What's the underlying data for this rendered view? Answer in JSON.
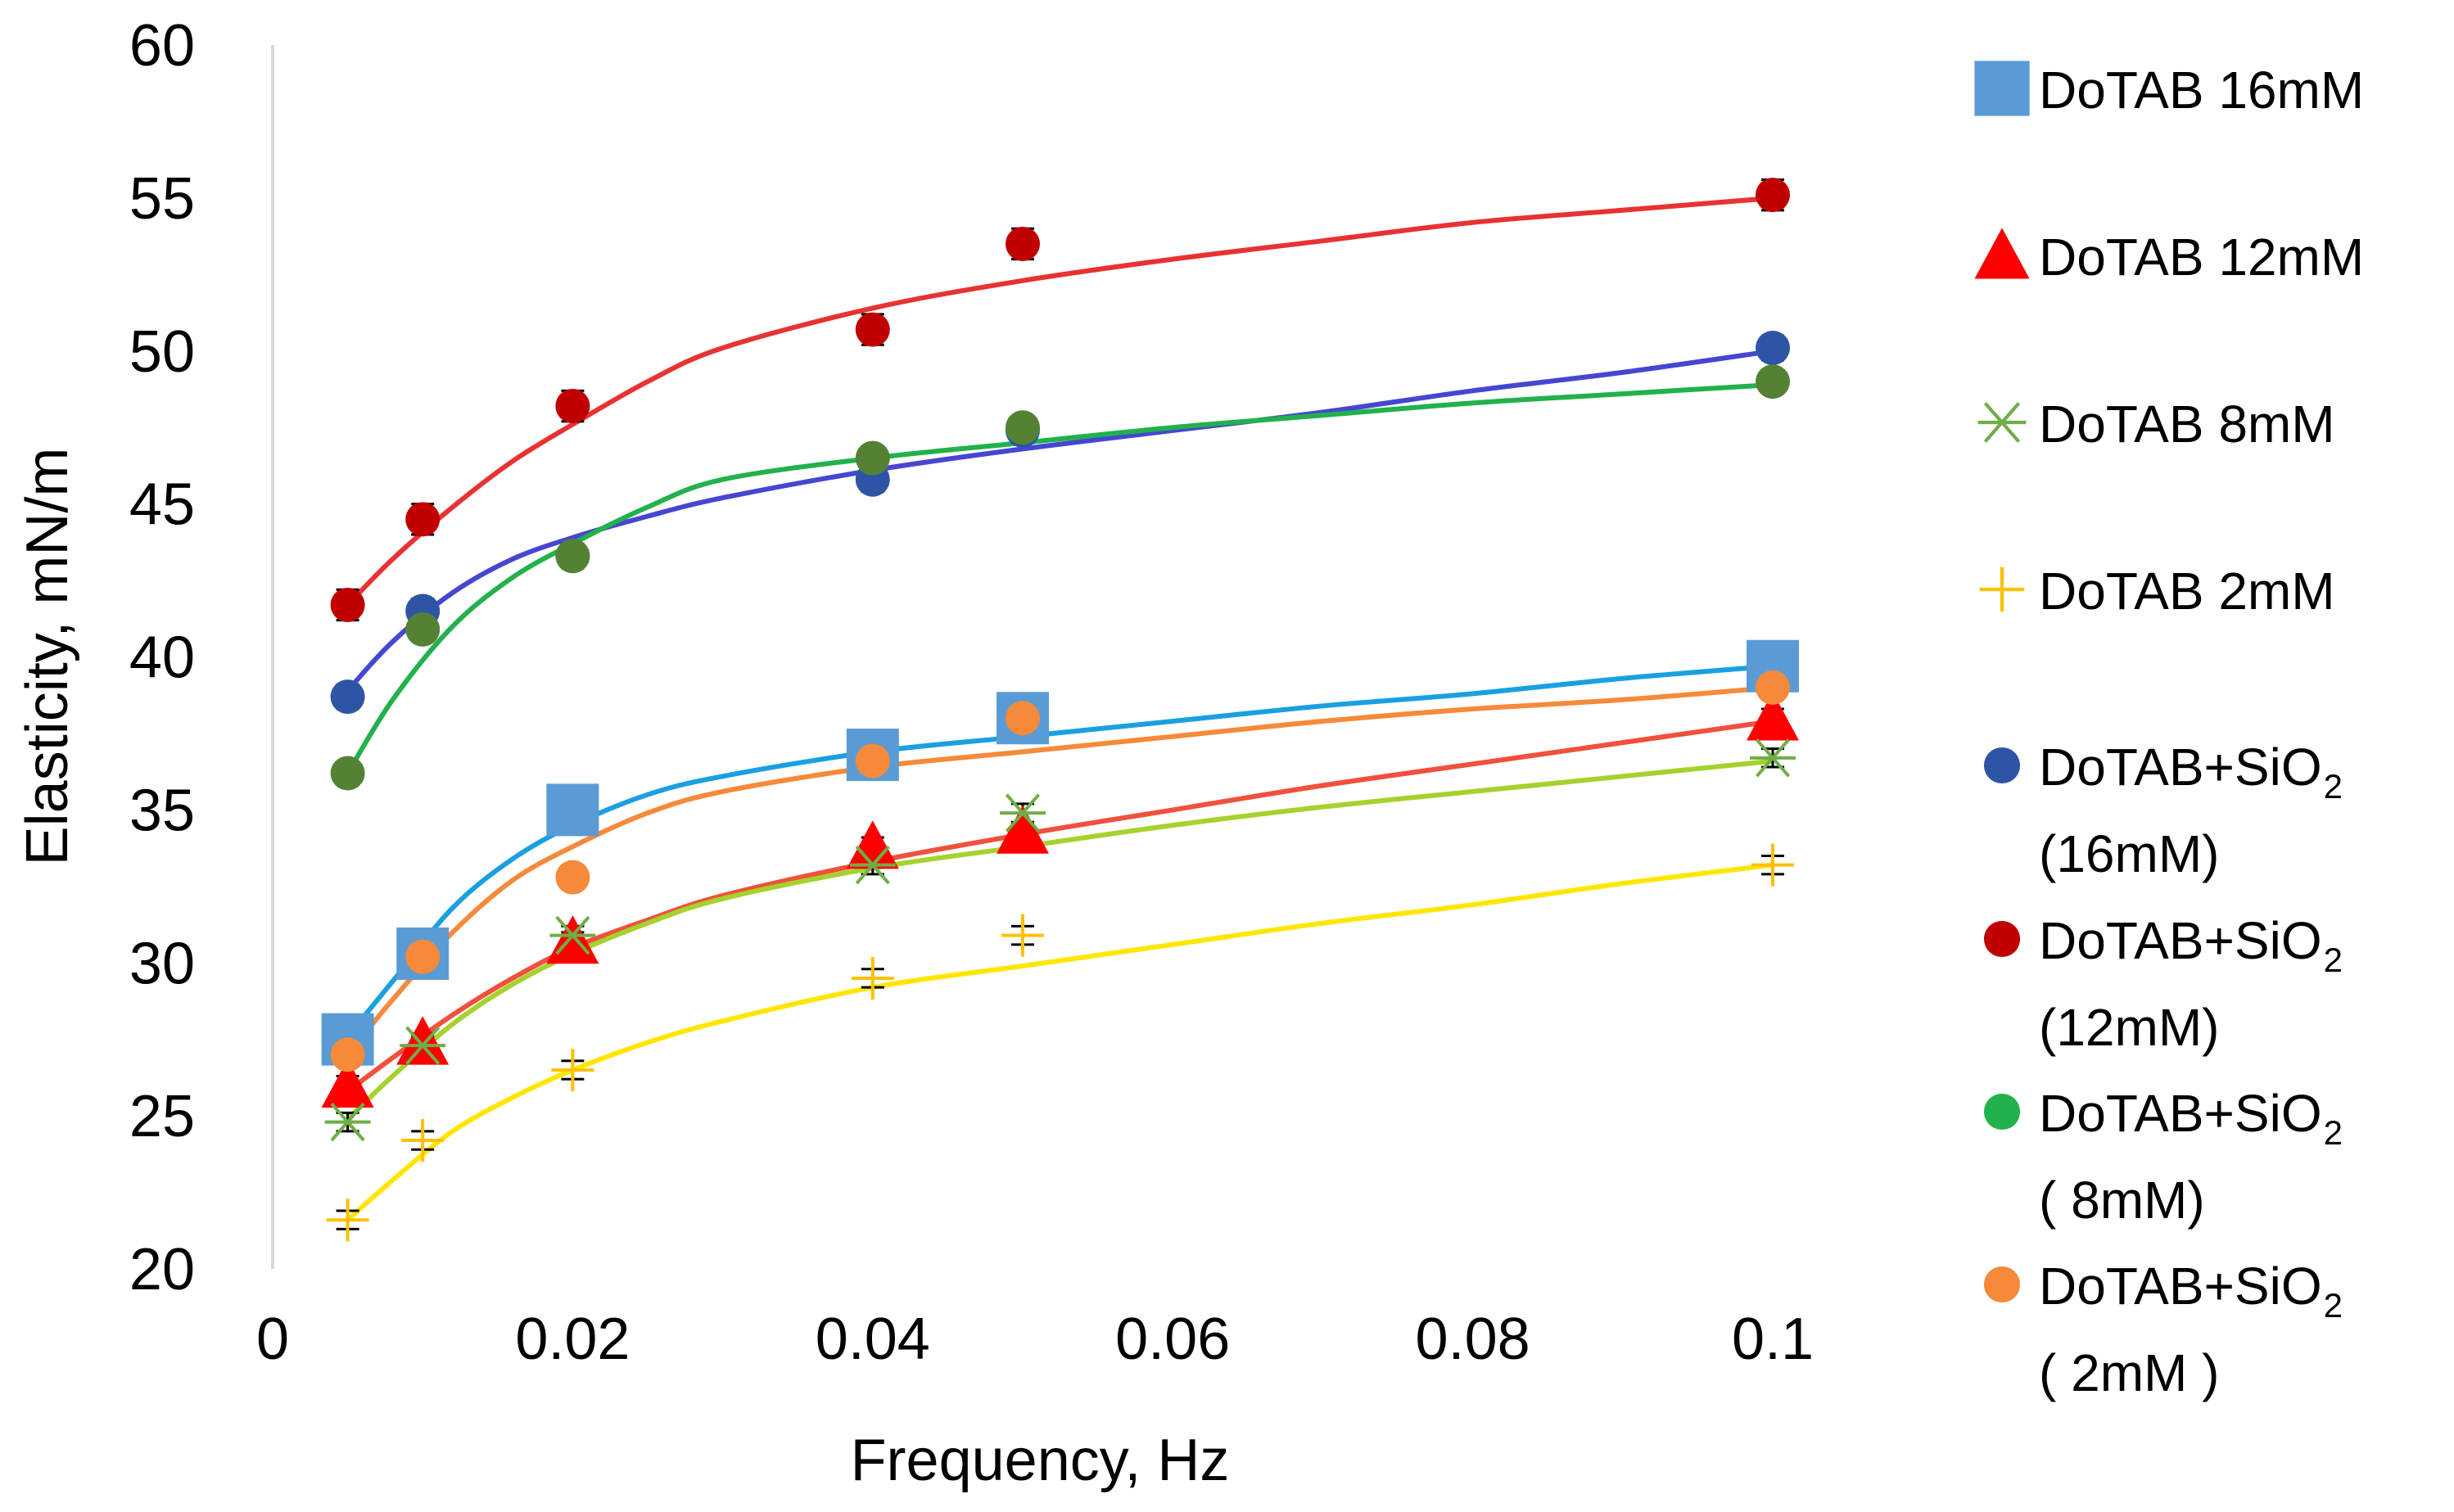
{
  "chart_data": {
    "type": "scatter",
    "title": "",
    "xlabel": "Frequency, Hz",
    "ylabel": "Elasticity, mN/m",
    "xlim": [
      0,
      0.1
    ],
    "ylim": [
      20,
      60
    ],
    "xticks": [
      0,
      0.02,
      0.04,
      0.06,
      0.08,
      0.1
    ],
    "xtick_labels": [
      "0",
      "0.02",
      "0.04",
      "0.06",
      "0.08",
      "0.1"
    ],
    "yticks": [
      20,
      25,
      30,
      35,
      40,
      45,
      50,
      55,
      60
    ],
    "ytick_labels": [
      "20",
      "25",
      "30",
      "35",
      "40",
      "45",
      "50",
      "55",
      "60"
    ],
    "grid": false,
    "legend_position": "right",
    "series": [
      {
        "name": "DoTAB 16mM",
        "legend_lines": [
          "DoTAB 16mM"
        ],
        "marker": "square",
        "color": "#5B9BD5",
        "line_color": "#1AA0E0",
        "x": [
          0.005,
          0.01,
          0.02,
          0.04,
          0.05,
          0.1
        ],
        "y": [
          27.5,
          30.3,
          35.0,
          36.8,
          38.0,
          39.7
        ],
        "error": [
          0.3,
          0.3,
          0.3,
          0.3,
          0.3,
          0.3
        ],
        "fit": [
          [
            0.005,
            27.6
          ],
          [
            0.008,
            29.4
          ],
          [
            0.012,
            31.8
          ],
          [
            0.016,
            33.4
          ],
          [
            0.02,
            34.5
          ],
          [
            0.025,
            35.5
          ],
          [
            0.03,
            36.1
          ],
          [
            0.04,
            36.9
          ],
          [
            0.05,
            37.4
          ],
          [
            0.06,
            37.9
          ],
          [
            0.07,
            38.4
          ],
          [
            0.08,
            38.8
          ],
          [
            0.09,
            39.3
          ],
          [
            0.1,
            39.7
          ]
        ]
      },
      {
        "name": "DoTAB 12mM",
        "legend_lines": [
          "DoTAB 12mM"
        ],
        "marker": "triangle",
        "color": "#FF0000",
        "line_color": "#F0503C",
        "x": [
          0.005,
          0.01,
          0.02,
          0.04,
          0.05,
          0.1
        ],
        "y": [
          26.0,
          27.4,
          30.7,
          33.8,
          34.3,
          38.0
        ],
        "error": [
          0.3,
          0.3,
          0.3,
          0.3,
          0.3,
          0.3
        ],
        "fit": [
          [
            0.005,
            25.8
          ],
          [
            0.008,
            26.9
          ],
          [
            0.012,
            28.3
          ],
          [
            0.016,
            29.5
          ],
          [
            0.02,
            30.5
          ],
          [
            0.025,
            31.4
          ],
          [
            0.03,
            32.2
          ],
          [
            0.04,
            33.3
          ],
          [
            0.05,
            34.2
          ],
          [
            0.06,
            35.0
          ],
          [
            0.07,
            35.8
          ],
          [
            0.08,
            36.5
          ],
          [
            0.09,
            37.2
          ],
          [
            0.1,
            37.9
          ]
        ]
      },
      {
        "name": "DoTAB 8mM",
        "legend_lines": [
          "DoTAB 8mM"
        ],
        "marker": "asterisk",
        "color": "#70AD47",
        "line_color": "#A5D22D",
        "x": [
          0.005,
          0.01,
          0.02,
          0.04,
          0.05,
          0.1
        ],
        "y": [
          24.8,
          27.3,
          30.9,
          33.2,
          34.9,
          36.7
        ],
        "error": [
          0.3,
          0.3,
          0.3,
          0.3,
          0.3,
          0.3
        ],
        "fit": [
          [
            0.005,
            24.9
          ],
          [
            0.008,
            26.3
          ],
          [
            0.012,
            28.0
          ],
          [
            0.016,
            29.3
          ],
          [
            0.02,
            30.3
          ],
          [
            0.025,
            31.3
          ],
          [
            0.03,
            32.1
          ],
          [
            0.04,
            33.1
          ],
          [
            0.05,
            33.8
          ],
          [
            0.06,
            34.5
          ],
          [
            0.07,
            35.1
          ],
          [
            0.08,
            35.6
          ],
          [
            0.09,
            36.1
          ],
          [
            0.1,
            36.6
          ]
        ]
      },
      {
        "name": "DoTAB 2mM",
        "legend_lines": [
          "DoTAB 2mM"
        ],
        "marker": "plus",
        "color": "#FFC000",
        "line_color": "#FFE600",
        "x": [
          0.005,
          0.01,
          0.02,
          0.04,
          0.05,
          0.1
        ],
        "y": [
          21.6,
          24.2,
          26.5,
          29.5,
          30.9,
          33.2
        ],
        "error": [
          0.3,
          0.3,
          0.3,
          0.3,
          0.3,
          0.3
        ],
        "fit": [
          [
            0.005,
            21.6
          ],
          [
            0.008,
            22.9
          ],
          [
            0.012,
            24.5
          ],
          [
            0.016,
            25.6
          ],
          [
            0.02,
            26.5
          ],
          [
            0.025,
            27.4
          ],
          [
            0.03,
            28.1
          ],
          [
            0.04,
            29.2
          ],
          [
            0.05,
            29.9
          ],
          [
            0.06,
            30.6
          ],
          [
            0.07,
            31.3
          ],
          [
            0.08,
            31.9
          ],
          [
            0.09,
            32.6
          ],
          [
            0.1,
            33.2
          ]
        ]
      },
      {
        "name": "DoTAB+SiO2 (16mM)",
        "legend_lines": [
          "DoTAB+SiO",
          "(16mM)"
        ],
        "legend_subscript": "2",
        "marker": "circle",
        "color": "#2E55A5",
        "line_color": "#4646D2",
        "x": [
          0.005,
          0.01,
          0.02,
          0.04,
          0.05,
          0.1
        ],
        "y": [
          38.7,
          41.5,
          43.3,
          45.8,
          47.4,
          50.1
        ],
        "error": [
          0.4,
          0.4,
          0.4,
          0.4,
          0.4,
          0.4
        ],
        "fit": [
          [
            0.005,
            38.9
          ],
          [
            0.008,
            40.5
          ],
          [
            0.012,
            42.1
          ],
          [
            0.016,
            43.2
          ],
          [
            0.02,
            43.9
          ],
          [
            0.025,
            44.6
          ],
          [
            0.03,
            45.2
          ],
          [
            0.04,
            46.1
          ],
          [
            0.05,
            46.8
          ],
          [
            0.06,
            47.4
          ],
          [
            0.07,
            48.0
          ],
          [
            0.08,
            48.7
          ],
          [
            0.09,
            49.3
          ],
          [
            0.1,
            50.0
          ]
        ]
      },
      {
        "name": "DoTAB+SiO2 (12mM)",
        "legend_lines": [
          "DoTAB+SiO",
          "(12mM)"
        ],
        "legend_subscript": "2",
        "marker": "circle",
        "color": "#C00000",
        "line_color": "#E83232",
        "x": [
          0.005,
          0.01,
          0.02,
          0.04,
          0.05,
          0.1
        ],
        "y": [
          41.7,
          44.5,
          48.2,
          50.7,
          53.5,
          55.1
        ],
        "error": [
          0.5,
          0.5,
          0.5,
          0.5,
          0.5,
          0.5
        ],
        "fit": [
          [
            0.005,
            41.7
          ],
          [
            0.008,
            43.2
          ],
          [
            0.012,
            44.9
          ],
          [
            0.016,
            46.4
          ],
          [
            0.02,
            47.6
          ],
          [
            0.025,
            49.0
          ],
          [
            0.03,
            50.1
          ],
          [
            0.04,
            51.4
          ],
          [
            0.05,
            52.3
          ],
          [
            0.06,
            53.0
          ],
          [
            0.07,
            53.6
          ],
          [
            0.08,
            54.2
          ],
          [
            0.09,
            54.6
          ],
          [
            0.1,
            55.0
          ]
        ]
      },
      {
        "name": "DoTAB+SiO2 ( 8mM)",
        "legend_lines": [
          "DoTAB+SiO",
          " ( 8mM)"
        ],
        "legend_subscript": "2",
        "marker": "circle",
        "color": "#548235",
        "legend_color": "#22B14C",
        "line_color": "#22B14C",
        "x": [
          0.005,
          0.01,
          0.02,
          0.04,
          0.05,
          0.1
        ],
        "y": [
          36.2,
          40.9,
          43.3,
          46.5,
          47.5,
          49.0
        ],
        "error": [
          0.3,
          0.3,
          0.3,
          0.3,
          0.3,
          0.3
        ],
        "fit": [
          [
            0.005,
            36.2
          ],
          [
            0.008,
            38.6
          ],
          [
            0.012,
            41.0
          ],
          [
            0.016,
            42.6
          ],
          [
            0.02,
            43.7
          ],
          [
            0.025,
            44.9
          ],
          [
            0.03,
            45.8
          ],
          [
            0.04,
            46.5
          ],
          [
            0.05,
            47.0
          ],
          [
            0.06,
            47.5
          ],
          [
            0.07,
            47.9
          ],
          [
            0.08,
            48.3
          ],
          [
            0.09,
            48.6
          ],
          [
            0.1,
            48.9
          ]
        ]
      },
      {
        "name": "DoTAB+SiO2 ( 2mM )",
        "legend_lines": [
          "DoTAB+SiO",
          "( 2mM )"
        ],
        "legend_subscript": "2",
        "marker": "circle",
        "color": "#F58A3A",
        "line_color": "#F58A3A",
        "x": [
          0.005,
          0.01,
          0.02,
          0.04,
          0.05,
          0.1
        ],
        "y": [
          27.0,
          30.2,
          32.8,
          36.6,
          38.0,
          39.0
        ],
        "error": [
          0.3,
          0.3,
          0.3,
          0.3,
          0.3,
          0.3
        ],
        "fit": [
          [
            0.005,
            27.0
          ],
          [
            0.008,
            28.8
          ],
          [
            0.012,
            31.0
          ],
          [
            0.016,
            32.7
          ],
          [
            0.02,
            33.8
          ],
          [
            0.025,
            34.9
          ],
          [
            0.03,
            35.6
          ],
          [
            0.04,
            36.4
          ],
          [
            0.05,
            36.9
          ],
          [
            0.06,
            37.4
          ],
          [
            0.07,
            37.9
          ],
          [
            0.08,
            38.3
          ],
          [
            0.09,
            38.6
          ],
          [
            0.1,
            39.0
          ]
        ]
      }
    ]
  }
}
